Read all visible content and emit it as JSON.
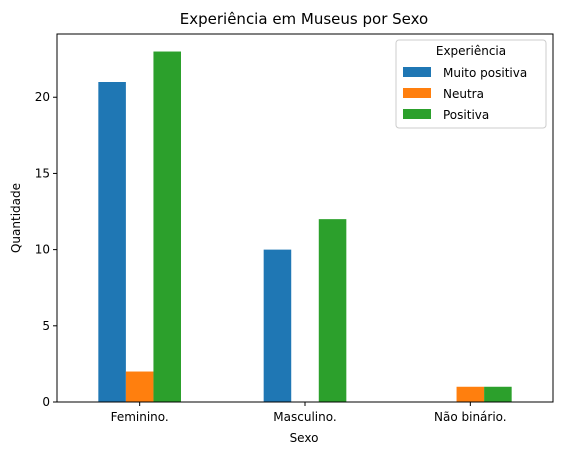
{
  "chart_data": {
    "type": "bar",
    "title": "Experiência em Museus por Sexo",
    "xlabel": "Sexo",
    "ylabel": "Quantidade",
    "categories": [
      "Feminino.",
      "Masculino.",
      "Não binário."
    ],
    "series": [
      {
        "name": "Muito positiva",
        "color": "#1f77b4",
        "values": [
          21,
          10,
          0
        ]
      },
      {
        "name": "Neutra",
        "color": "#ff7f0e",
        "values": [
          2,
          0,
          1
        ]
      },
      {
        "name": "Positiva",
        "color": "#2ca02c",
        "values": [
          23,
          12,
          1
        ]
      }
    ],
    "ylim": [
      0,
      24.15
    ],
    "yticks": [
      0,
      5,
      10,
      15,
      20
    ],
    "grid": false,
    "legend": {
      "title": "Experiência",
      "position": "top-right"
    }
  }
}
